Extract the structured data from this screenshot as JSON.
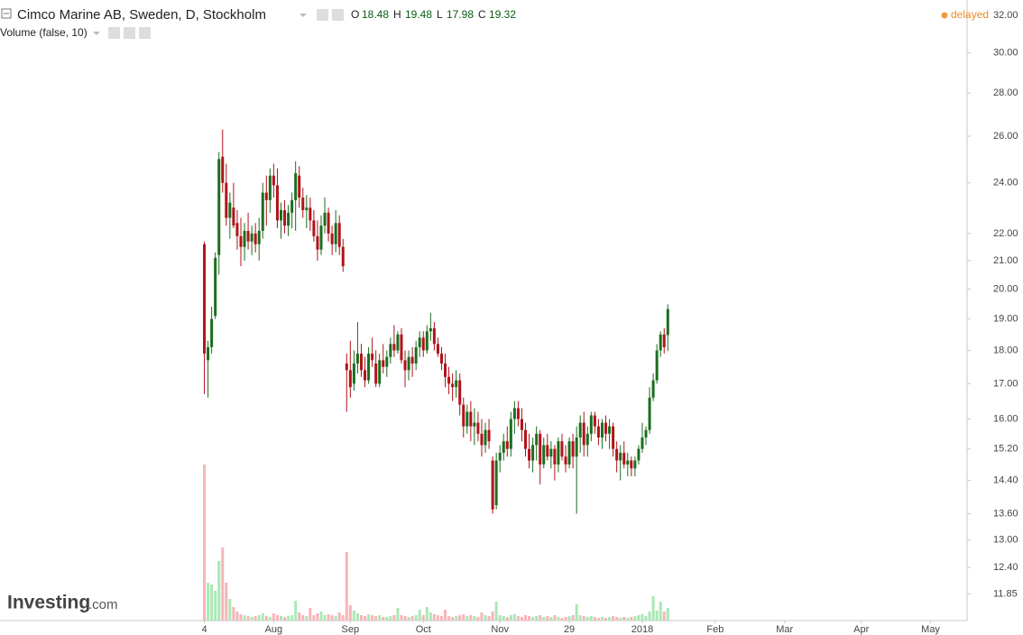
{
  "chart_data": {
    "type": "candlestick",
    "title": "Cimco Marine AB, Sweden, D, Stockholm",
    "ohlc_labels": [
      "O",
      "H",
      "L",
      "C"
    ],
    "indicator": "Volume (false, 10)",
    "status": "delayed",
    "brand": {
      "name": "Investing",
      "suffix": ".com"
    },
    "log_y": true,
    "grid": false,
    "up_color": "#1b6e1f",
    "down_color": "#b0141a",
    "up_volume_color": "#a9e8b5",
    "down_volume_color": "#f7b5b8",
    "ylim": [
      11.32,
      32.85
    ],
    "yticks": [
      {
        "value": 32,
        "label": "32.00"
      },
      {
        "value": 30,
        "label": "30.00"
      },
      {
        "value": 28,
        "label": "28.00"
      },
      {
        "value": 26,
        "label": "26.00"
      },
      {
        "value": 24,
        "label": "24.00"
      },
      {
        "value": 22,
        "label": "22.00"
      },
      {
        "value": 21,
        "label": "21.00"
      },
      {
        "value": 20,
        "label": "20.00"
      },
      {
        "value": 19,
        "label": "19.00"
      },
      {
        "value": 18,
        "label": "18.00"
      },
      {
        "value": 17,
        "label": "17.00"
      },
      {
        "value": 16,
        "label": "16.00"
      },
      {
        "value": 15.2,
        "label": "15.20"
      },
      {
        "value": 14.4,
        "label": "14.40"
      },
      {
        "value": 13.6,
        "label": "13.60"
      },
      {
        "value": 13,
        "label": "13.00"
      },
      {
        "value": 12.4,
        "label": "12.40"
      },
      {
        "value": 11.85,
        "label": "11.85"
      }
    ],
    "xlim": [
      -56,
      209
    ],
    "xticks": [
      {
        "value": 0,
        "label": "4"
      },
      {
        "value": 19,
        "label": "Aug"
      },
      {
        "value": 40,
        "label": "Sep"
      },
      {
        "value": 60,
        "label": "Oct"
      },
      {
        "value": 81,
        "label": "Nov"
      },
      {
        "value": 100,
        "label": "29"
      },
      {
        "value": 120,
        "label": "2018"
      },
      {
        "value": 140,
        "label": "Feb"
      },
      {
        "value": 159,
        "label": "Mar"
      },
      {
        "value": 180,
        "label": "Apr"
      },
      {
        "value": 199,
        "label": "May"
      }
    ],
    "open": [
      21.6,
      17.7,
      18.1,
      19.1,
      21.2,
      25.1,
      24.0,
      22.6,
      23.0,
      22.4,
      21.9,
      21.5,
      22.1,
      21.7,
      22.0,
      21.6,
      22.1,
      23.6,
      23.3,
      24.3,
      23.9,
      22.5,
      22.9,
      22.3,
      22.8,
      23.3,
      24.3,
      23.4,
      22.9,
      23.0,
      22.5,
      21.9,
      21.4,
      22.3,
      22.8,
      22.0,
      21.6,
      22.4,
      21.5,
      17.6,
      17.4,
      17.0,
      17.6,
      17.9,
      17.4,
      17.1,
      17.9,
      17.6,
      17.0,
      17.7,
      17.5,
      17.8,
      18.2,
      18.0,
      18.5,
      17.7,
      17.4,
      17.8,
      17.6,
      18.1,
      18.4,
      18.0,
      18.6,
      18.7,
      18.2,
      17.9,
      17.6,
      17.2,
      17.0,
      16.9,
      17.1,
      16.4,
      15.8,
      16.2,
      15.8,
      15.9,
      15.6,
      15.3,
      15.7,
      14.9,
      13.8,
      14.9,
      15.1,
      15.4,
      15.2,
      16.0,
      16.3,
      16.0,
      15.7,
      15.2,
      14.9,
      15.3,
      15.6,
      14.8,
      15.3,
      15.0,
      15.2,
      14.8,
      15.4,
      15.0,
      14.8,
      15.4,
      15.0,
      15.5,
      15.9,
      15.3,
      15.6,
      16.1,
      15.8,
      15.5,
      15.9,
      15.6,
      15.8,
      15.2,
      14.9,
      15.1,
      14.8,
      14.9,
      14.7,
      14.9,
      15.2,
      15.5,
      15.7,
      16.6,
      17.1,
      18.0,
      18.5,
      18.48
    ],
    "high": [
      21.7,
      18.3,
      19.4,
      21.3,
      25.3,
      26.3,
      24.8,
      23.6,
      24.0,
      22.9,
      22.6,
      22.4,
      22.8,
      22.3,
      22.4,
      22.6,
      24.0,
      24.3,
      24.6,
      24.8,
      24.6,
      23.2,
      23.3,
      23.1,
      23.6,
      24.9,
      24.7,
      23.8,
      23.5,
      23.4,
      22.9,
      22.5,
      22.7,
      23.4,
      23.0,
      22.3,
      22.9,
      22.7,
      21.8,
      17.9,
      18.3,
      18.0,
      18.9,
      18.2,
      17.8,
      18.1,
      18.4,
      18.0,
      17.9,
      18.2,
      18.0,
      18.4,
      18.8,
      18.6,
      18.7,
      18.0,
      18.0,
      18.1,
      18.3,
      18.6,
      18.6,
      18.8,
      19.2,
      18.9,
      18.4,
      18.1,
      17.9,
      17.5,
      17.3,
      17.4,
      17.3,
      16.6,
      16.4,
      16.5,
      16.3,
      16.2,
      16.0,
      15.9,
      16.0,
      15.0,
      15.1,
      15.3,
      15.6,
      15.8,
      16.2,
      16.5,
      16.5,
      16.3,
      15.9,
      15.6,
      15.5,
      15.8,
      15.7,
      15.5,
      15.6,
      15.4,
      15.3,
      15.5,
      15.6,
      15.3,
      15.5,
      15.6,
      15.8,
      16.1,
      16.2,
      15.8,
      16.2,
      16.2,
      16.0,
      16.0,
      16.1,
      16.0,
      15.9,
      15.4,
      15.3,
      15.4,
      15.1,
      15.0,
      15.0,
      15.3,
      15.9,
      15.8,
      16.9,
      17.3,
      18.2,
      18.6,
      18.7,
      19.48
    ],
    "low": [
      16.7,
      16.6,
      17.9,
      19.0,
      20.5,
      23.6,
      22.3,
      21.8,
      22.2,
      21.4,
      20.8,
      21.0,
      21.4,
      21.2,
      21.3,
      21.0,
      21.8,
      22.3,
      22.8,
      23.4,
      22.2,
      21.8,
      22.0,
      21.9,
      22.2,
      22.1,
      23.0,
      22.6,
      22.2,
      22.1,
      21.7,
      21.0,
      21.2,
      22.0,
      21.7,
      21.2,
      21.3,
      21.2,
      20.6,
      16.2,
      16.6,
      16.8,
      17.3,
      17.2,
      16.9,
      17.0,
      17.5,
      16.9,
      16.9,
      17.3,
      17.2,
      17.6,
      17.8,
      17.9,
      17.6,
      16.9,
      17.1,
      17.2,
      17.4,
      17.8,
      17.8,
      17.9,
      18.3,
      18.0,
      17.8,
      17.4,
      16.9,
      16.7,
      16.5,
      16.6,
      16.1,
      15.5,
      15.6,
      15.4,
      15.3,
      15.4,
      15.0,
      15.1,
      15.2,
      13.6,
      13.7,
      14.6,
      14.9,
      15.0,
      15.0,
      15.6,
      15.8,
      15.4,
      15.0,
      14.7,
      14.6,
      14.9,
      14.3,
      14.7,
      14.9,
      14.7,
      14.4,
      14.6,
      14.9,
      14.6,
      14.7,
      14.7,
      13.6,
      15.1,
      15.0,
      15.0,
      15.4,
      15.6,
      15.3,
      15.2,
      15.4,
      15.2,
      15.0,
      14.6,
      14.4,
      14.7,
      14.5,
      14.5,
      14.5,
      14.8,
      15.1,
      15.3,
      15.6,
      16.5,
      17.0,
      17.8,
      17.9,
      17.98
    ],
    "close": [
      17.9,
      18.1,
      19.0,
      21.1,
      25.0,
      24.0,
      22.6,
      23.2,
      22.3,
      21.9,
      21.5,
      22.1,
      21.7,
      22.0,
      21.6,
      22.1,
      23.6,
      23.3,
      24.3,
      23.9,
      22.5,
      22.9,
      22.3,
      22.8,
      23.3,
      24.4,
      23.4,
      22.9,
      23.0,
      22.5,
      21.9,
      21.4,
      22.3,
      22.8,
      22.0,
      21.6,
      22.4,
      21.5,
      20.8,
      17.4,
      16.9,
      17.6,
      17.9,
      17.4,
      17.1,
      17.9,
      17.7,
      17.0,
      17.7,
      17.5,
      17.8,
      18.2,
      18.0,
      18.5,
      17.7,
      17.4,
      17.8,
      17.6,
      18.1,
      18.4,
      18.0,
      18.6,
      18.7,
      18.2,
      17.9,
      17.6,
      17.2,
      17.0,
      16.9,
      17.1,
      16.4,
      15.8,
      16.2,
      15.8,
      15.9,
      15.6,
      15.3,
      15.7,
      15.4,
      13.7,
      14.9,
      15.1,
      15.4,
      15.2,
      16.0,
      16.3,
      16.0,
      15.7,
      15.2,
      14.9,
      15.3,
      15.6,
      14.8,
      15.3,
      15.0,
      15.2,
      14.8,
      15.4,
      15.0,
      14.8,
      15.4,
      15.0,
      15.5,
      15.9,
      15.3,
      15.6,
      16.1,
      15.8,
      15.5,
      15.9,
      15.6,
      15.8,
      15.2,
      14.9,
      15.1,
      14.8,
      14.9,
      14.7,
      14.9,
      15.2,
      15.5,
      15.7,
      16.6,
      17.1,
      18.0,
      18.5,
      18.1,
      19.32
    ],
    "volume": [
      1730,
      420,
      400,
      330,
      660,
      810,
      420,
      240,
      150,
      100,
      70,
      60,
      50,
      40,
      50,
      60,
      80,
      50,
      40,
      80,
      60,
      50,
      40,
      50,
      60,
      220,
      90,
      60,
      50,
      140,
      60,
      80,
      100,
      60,
      70,
      60,
      50,
      90,
      60,
      760,
      170,
      110,
      80,
      60,
      50,
      70,
      60,
      50,
      60,
      40,
      40,
      50,
      60,
      140,
      60,
      50,
      40,
      50,
      60,
      120,
      60,
      150,
      90,
      70,
      60,
      50,
      120,
      50,
      40,
      50,
      60,
      70,
      50,
      60,
      50,
      40,
      90,
      60,
      50,
      100,
      210,
      60,
      50,
      40,
      60,
      70,
      50,
      40,
      60,
      50,
      40,
      50,
      60,
      40,
      50,
      40,
      60,
      40,
      30,
      40,
      50,
      60,
      180,
      60,
      50,
      40,
      50,
      40,
      30,
      40,
      30,
      40,
      50,
      40,
      30,
      40,
      30,
      40,
      50,
      60,
      70,
      50,
      100,
      270,
      110,
      210,
      100,
      140
    ]
  }
}
